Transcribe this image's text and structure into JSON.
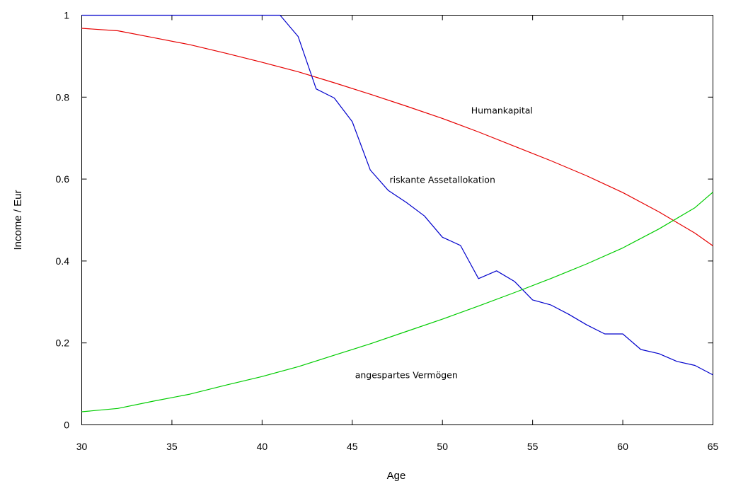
{
  "chart_data": {
    "type": "line",
    "title": "",
    "xlabel": "Age",
    "ylabel": "Income / Eur",
    "xlim": [
      30,
      65
    ],
    "ylim": [
      0,
      1
    ],
    "x_ticks": [
      30,
      35,
      40,
      45,
      50,
      55,
      60,
      65
    ],
    "y_ticks": [
      0,
      0.2,
      0.4,
      0.6,
      0.8,
      1
    ],
    "x_tick_labels": [
      "30",
      "35",
      "40",
      "45",
      "50",
      "55",
      "60",
      "65"
    ],
    "y_tick_labels": [
      "0",
      "0.2",
      "0.4",
      "0.6",
      "0.8",
      "1"
    ],
    "grid": false,
    "legend": "none",
    "series": [
      {
        "name": "Humankapital",
        "color": "#e60000",
        "x": [
          30,
          32,
          34,
          36,
          38,
          40,
          42,
          44,
          46,
          48,
          50,
          52,
          54,
          56,
          58,
          60,
          62,
          64,
          65
        ],
        "y": [
          0.968,
          0.962,
          0.945,
          0.928,
          0.907,
          0.885,
          0.862,
          0.835,
          0.807,
          0.778,
          0.748,
          0.715,
          0.68,
          0.645,
          0.608,
          0.567,
          0.52,
          0.468,
          0.437
        ]
      },
      {
        "name": "riskante Assetallokation",
        "color": "#0000cc",
        "x": [
          30,
          41,
          42,
          43,
          44,
          45,
          46,
          47,
          48,
          49,
          50,
          51,
          52,
          53,
          54,
          55,
          56,
          57,
          58,
          59,
          60,
          61,
          62,
          63,
          64,
          65
        ],
        "y": [
          1.0,
          1.0,
          0.948,
          0.82,
          0.798,
          0.74,
          0.622,
          0.572,
          0.543,
          0.51,
          0.458,
          0.438,
          0.357,
          0.376,
          0.35,
          0.305,
          0.293,
          0.27,
          0.244,
          0.222,
          0.222,
          0.184,
          0.174,
          0.155,
          0.145,
          0.122
        ]
      },
      {
        "name": "angespartes Vermögen",
        "color": "#00cc00",
        "x": [
          30,
          32,
          34,
          36,
          38,
          40,
          42,
          44,
          46,
          48,
          50,
          52,
          54,
          56,
          58,
          60,
          62,
          64,
          65
        ],
        "y": [
          0.032,
          0.04,
          0.058,
          0.075,
          0.097,
          0.118,
          0.142,
          0.17,
          0.198,
          0.228,
          0.258,
          0.29,
          0.323,
          0.357,
          0.393,
          0.432,
          0.478,
          0.53,
          0.568
        ]
      }
    ],
    "annotations": [
      {
        "text": "Humankapital",
        "x": 53.3,
        "y": 0.76
      },
      {
        "text": "riskante Assetallokation",
        "x": 50.0,
        "y": 0.591
      },
      {
        "text": "angespartes Vermögen",
        "x": 48.0,
        "y": 0.114
      }
    ]
  }
}
